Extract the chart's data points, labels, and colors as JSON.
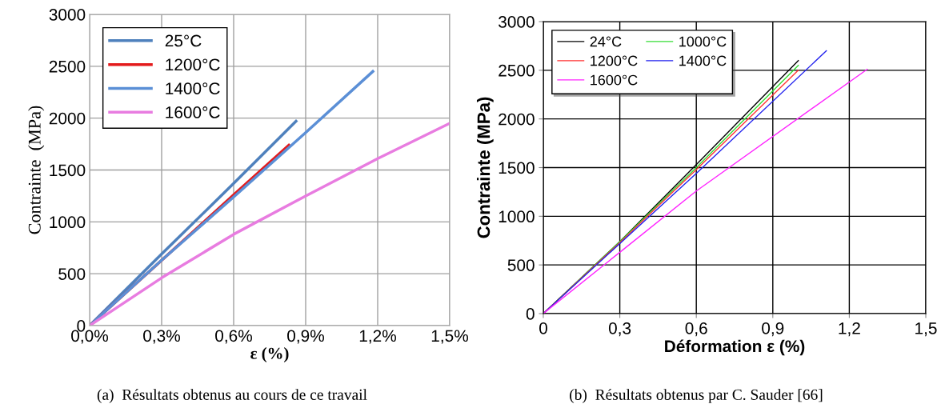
{
  "chart_data": [
    {
      "type": "line",
      "ylabel": "Contrainte  (MPa)",
      "xlabel": "ε (%)",
      "xlim": [
        0,
        1.5
      ],
      "ylim": [
        0,
        3000
      ],
      "xticks": [
        {
          "value": 0,
          "label": "0,0%"
        },
        {
          "value": 0.3,
          "label": "0,3%"
        },
        {
          "value": 0.6,
          "label": "0,6%"
        },
        {
          "value": 0.9,
          "label": "0,9%"
        },
        {
          "value": 1.2,
          "label": "1,2%"
        },
        {
          "value": 1.5,
          "label": "1,5%"
        }
      ],
      "yticks": [
        0,
        500,
        1000,
        1500,
        2000,
        2500,
        3000
      ],
      "grid": true,
      "legend": "top left",
      "line_style": "solid",
      "marker": "none",
      "annotations": [
        "(a)  Résultats obtenus au cours de ce travail"
      ],
      "series": [
        {
          "name": "25°C",
          "color": "#4f81bd",
          "x": [
            0,
            0.3,
            0.6,
            0.86
          ],
          "values": [
            0,
            690,
            1370,
            1970
          ]
        },
        {
          "name": "1200°C",
          "color": "#e31a1c",
          "x": [
            0,
            0.6,
            0.83
          ],
          "values": [
            0,
            1260,
            1740
          ]
        },
        {
          "name": "1400°C",
          "color": "#5b8fd6",
          "x": [
            0,
            0.3,
            0.6,
            0.9,
            1.18
          ],
          "values": [
            0,
            630,
            1240,
            1860,
            2450
          ]
        },
        {
          "name": "1600°C",
          "color": "#e87ce0",
          "x": [
            0,
            0.3,
            0.6,
            0.9,
            1.2,
            1.5
          ],
          "values": [
            0,
            460,
            880,
            1250,
            1610,
            1950
          ]
        }
      ]
    },
    {
      "type": "line",
      "ylabel": "Contrainte (MPa)",
      "xlabel": "Déformation ε (%)",
      "xlim": [
        0,
        1.5
      ],
      "ylim": [
        0,
        3000
      ],
      "xticks": [
        0,
        {
          "value": 0.3,
          "label": "0,3"
        },
        {
          "value": 0.6,
          "label": "0,6"
        },
        {
          "value": 0.9,
          "label": "0,9"
        },
        {
          "value": 1.2,
          "label": "1,2"
        },
        {
          "value": 1.5,
          "label": "1,5"
        }
      ],
      "yticks": [
        0,
        500,
        1000,
        1500,
        2000,
        2500,
        3000
      ],
      "grid": true,
      "legend": "top left",
      "line_style": "solid",
      "marker": "none",
      "annotations": [
        "(b)  Résultats obtenus par C. Sauder [66]"
      ],
      "series": [
        {
          "name": "24°C",
          "color": "#000000",
          "x": [
            0,
            0.3,
            0.6,
            1.0
          ],
          "values": [
            0,
            740,
            1530,
            2600
          ]
        },
        {
          "name": "1000°C",
          "color": "#33dd33",
          "x": [
            0,
            0.3,
            0.6,
            1.0
          ],
          "values": [
            0,
            740,
            1500,
            2550
          ]
        },
        {
          "name": "1200°C",
          "color": "#ff3333",
          "x": [
            0,
            0.3,
            0.6,
            1.0
          ],
          "values": [
            0,
            730,
            1480,
            2500
          ]
        },
        {
          "name": "1400°C",
          "color": "#2222ee",
          "x": [
            0,
            0.3,
            0.6,
            1.11
          ],
          "values": [
            0,
            720,
            1440,
            2700
          ]
        },
        {
          "name": "1600°C",
          "color": "#ff22ff",
          "x": [
            0,
            0.3,
            0.6,
            1.27
          ],
          "values": [
            0,
            630,
            1260,
            2510
          ]
        }
      ]
    }
  ]
}
